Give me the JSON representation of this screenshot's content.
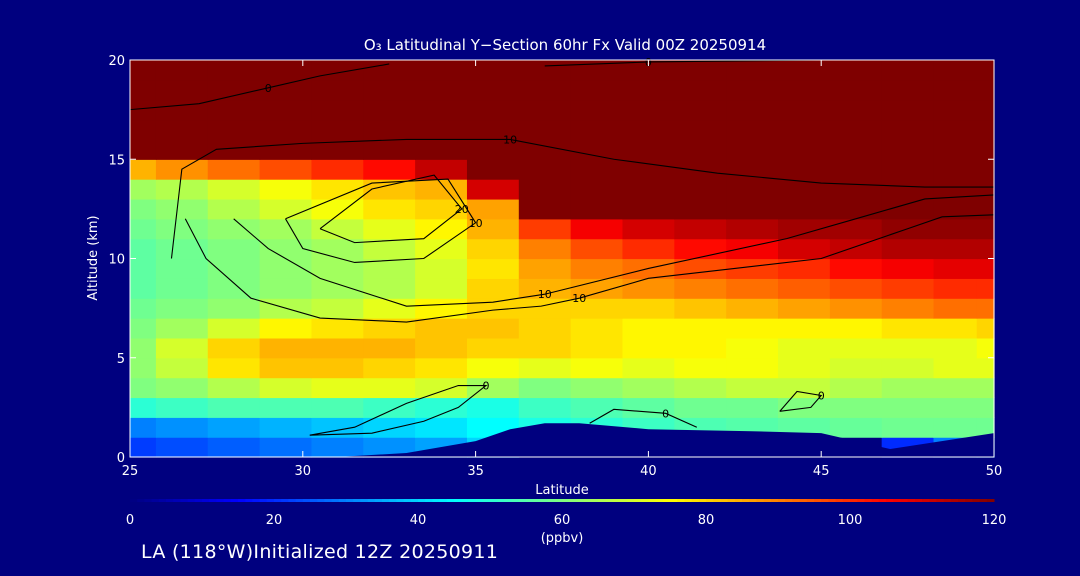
{
  "chart_data": {
    "type": "heatmap",
    "title": "O₃ Latitudinal Y−Section 60hr  Fx Valid 00Z 20250914",
    "xlabel": "Latitude",
    "ylabel": "Altitude (km)",
    "xlim": [
      25,
      50
    ],
    "ylim": [
      0,
      20
    ],
    "x_ticks": [
      "25",
      "30",
      "35",
      "40",
      "45",
      "50"
    ],
    "y_ticks": [
      "0",
      "5",
      "10",
      "15",
      "20"
    ],
    "colorbar": {
      "ticks": [
        "0",
        "20",
        "40",
        "60",
        "80",
        "100",
        "120"
      ],
      "range": [
        0,
        120
      ],
      "unit": "(ppbv)",
      "colors": [
        "#00007f",
        "#0000ff",
        "#0080ff",
        "#00ffff",
        "#80ff80",
        "#ffff00",
        "#ff8000",
        "#ff0000",
        "#7f0000"
      ]
    },
    "x": [
      25,
      26.5,
      28,
      29.5,
      31,
      32.5,
      34,
      35.5,
      37,
      38.5,
      40,
      41.5,
      43,
      44.5,
      46,
      47.5,
      49,
      50
    ],
    "y": [
      0.5,
      1.5,
      2.5,
      3.5,
      4.5,
      5.5,
      6.5,
      7.5,
      8.5,
      9.5,
      10.5,
      11.5,
      12.5,
      13.5,
      14.5,
      15.5,
      16.5,
      17.5,
      18.5,
      19.5
    ],
    "values": [
      [
        22,
        24,
        26,
        28,
        30,
        32,
        34,
        40,
        0,
        0,
        0,
        0,
        0,
        0,
        0,
        20,
        30,
        35
      ],
      [
        30,
        32,
        34,
        36,
        38,
        40,
        42,
        45,
        48,
        50,
        52,
        54,
        55,
        56,
        57,
        58,
        58,
        58
      ],
      [
        50,
        52,
        54,
        54,
        54,
        52,
        50,
        48,
        52,
        54,
        56,
        58,
        58,
        60,
        60,
        60,
        60,
        60
      ],
      [
        60,
        62,
        66,
        70,
        72,
        72,
        70,
        64,
        60,
        62,
        64,
        66,
        68,
        68,
        66,
        64,
        64,
        64
      ],
      [
        62,
        68,
        78,
        82,
        82,
        80,
        78,
        74,
        72,
        74,
        72,
        74,
        74,
        72,
        70,
        70,
        72,
        72
      ],
      [
        62,
        70,
        80,
        84,
        84,
        84,
        82,
        80,
        80,
        78,
        76,
        76,
        74,
        72,
        72,
        72,
        72,
        74
      ],
      [
        60,
        64,
        70,
        76,
        78,
        80,
        82,
        82,
        80,
        78,
        76,
        76,
        76,
        76,
        76,
        78,
        78,
        80
      ],
      [
        58,
        60,
        62,
        66,
        68,
        72,
        76,
        80,
        80,
        80,
        80,
        82,
        84,
        86,
        88,
        90,
        92,
        92
      ],
      [
        56,
        58,
        60,
        62,
        64,
        66,
        70,
        80,
        84,
        86,
        88,
        90,
        92,
        94,
        96,
        98,
        100,
        100
      ],
      [
        56,
        58,
        60,
        62,
        64,
        66,
        70,
        78,
        86,
        90,
        92,
        96,
        98,
        100,
        104,
        106,
        108,
        108
      ],
      [
        56,
        58,
        60,
        62,
        64,
        68,
        72,
        80,
        90,
        96,
        100,
        104,
        106,
        110,
        112,
        114,
        114,
        114
      ],
      [
        58,
        60,
        62,
        64,
        68,
        72,
        76,
        84,
        98,
        106,
        110,
        112,
        114,
        116,
        116,
        118,
        118,
        118
      ],
      [
        60,
        62,
        66,
        70,
        74,
        78,
        80,
        86,
        120,
        120,
        120,
        120,
        120,
        120,
        120,
        120,
        120,
        120
      ],
      [
        64,
        66,
        70,
        74,
        78,
        82,
        84,
        110,
        120,
        120,
        120,
        120,
        120,
        120,
        120,
        120,
        120,
        120
      ],
      [
        84,
        88,
        92,
        96,
        100,
        104,
        112,
        120,
        120,
        120,
        120,
        120,
        120,
        120,
        120,
        120,
        120,
        120
      ],
      [
        120,
        120,
        120,
        120,
        120,
        120,
        120,
        120,
        120,
        120,
        120,
        120,
        120,
        120,
        120,
        120,
        120,
        120
      ],
      [
        120,
        120,
        120,
        120,
        120,
        120,
        120,
        120,
        120,
        120,
        120,
        120,
        120,
        120,
        120,
        120,
        120,
        120
      ],
      [
        120,
        120,
        120,
        120,
        120,
        120,
        120,
        120,
        120,
        120,
        120,
        120,
        120,
        120,
        120,
        120,
        120,
        120
      ],
      [
        120,
        120,
        120,
        120,
        120,
        120,
        120,
        120,
        120,
        120,
        120,
        120,
        120,
        120,
        120,
        120,
        120,
        120
      ],
      [
        120,
        120,
        120,
        120,
        120,
        120,
        120,
        120,
        120,
        120,
        120,
        120,
        120,
        120,
        120,
        120,
        120,
        120
      ]
    ],
    "terrain": {
      "x": [
        25,
        31,
        33,
        35,
        36,
        37,
        38,
        40,
        43,
        45,
        47,
        50
      ],
      "height_km": [
        0,
        0,
        0.2,
        0.8,
        1.4,
        1.7,
        1.7,
        1.4,
        1.3,
        1.2,
        0.4,
        1.2
      ]
    },
    "contours": [
      {
        "label": "0",
        "points": [
          [
            30.2,
            1.1
          ],
          [
            31.5,
            1.5
          ],
          [
            33,
            2.7
          ],
          [
            34.5,
            3.6
          ],
          [
            35.3,
            3.6
          ],
          [
            34.5,
            2.5
          ],
          [
            33.5,
            1.8
          ],
          [
            32,
            1.2
          ],
          [
            30.2,
            1.1
          ]
        ]
      },
      {
        "label": "0",
        "points": [
          [
            38.3,
            1.7
          ],
          [
            39,
            2.4
          ],
          [
            40.5,
            2.2
          ],
          [
            41.4,
            1.5
          ]
        ]
      },
      {
        "label": "0",
        "points": [
          [
            43.8,
            2.3
          ],
          [
            44.3,
            3.3
          ],
          [
            45,
            3.1
          ],
          [
            44.7,
            2.5
          ],
          [
            43.8,
            2.3
          ]
        ]
      },
      {
        "label": "10",
        "points": [
          [
            26.2,
            10
          ],
          [
            26.5,
            14.5
          ],
          [
            27.5,
            15.5
          ],
          [
            30,
            15.8
          ],
          [
            33,
            16
          ],
          [
            36,
            16
          ],
          [
            39,
            15
          ],
          [
            42,
            14.3
          ],
          [
            45,
            13.8
          ],
          [
            48,
            13.6
          ],
          [
            50,
            13.6
          ]
        ]
      },
      {
        "label": "10",
        "points": [
          [
            26.6,
            12
          ],
          [
            27.2,
            10
          ],
          [
            28.5,
            8
          ],
          [
            30.5,
            7
          ],
          [
            33,
            6.8
          ],
          [
            35.5,
            7.4
          ],
          [
            36.9,
            7.6
          ],
          [
            38,
            8
          ],
          [
            40,
            9
          ],
          [
            42.5,
            9.5
          ],
          [
            45,
            10
          ],
          [
            47.5,
            11.5
          ],
          [
            48.5,
            12.1
          ],
          [
            50,
            12.2
          ]
        ]
      },
      {
        "label": "10",
        "points": [
          [
            28,
            12
          ],
          [
            29,
            10.5
          ],
          [
            30.5,
            9
          ],
          [
            33,
            7.6
          ],
          [
            35.5,
            7.8
          ],
          [
            37,
            8.2
          ],
          [
            40,
            9.5
          ],
          [
            44,
            11
          ],
          [
            46,
            12
          ],
          [
            48,
            13
          ],
          [
            50,
            13.2
          ]
        ]
      },
      {
        "label": "10",
        "points": [
          [
            29.5,
            12
          ],
          [
            30,
            10.5
          ],
          [
            31.5,
            9.8
          ],
          [
            33.5,
            10
          ],
          [
            35,
            11.8
          ],
          [
            34.2,
            14
          ],
          [
            32,
            13.8
          ],
          [
            29.5,
            12
          ]
        ]
      },
      {
        "label": "20",
        "points": [
          [
            30.5,
            11.5
          ],
          [
            31.5,
            10.8
          ],
          [
            33.5,
            11
          ],
          [
            34.6,
            12.5
          ],
          [
            33.8,
            14.2
          ],
          [
            32,
            13.5
          ],
          [
            30.5,
            11.5
          ]
        ]
      },
      {
        "label": "0",
        "points": [
          [
            37,
            19.7
          ],
          [
            40,
            19.9
          ],
          [
            45,
            20
          ]
        ]
      },
      {
        "label": "0",
        "points": [
          [
            25,
            17.5
          ],
          [
            27,
            17.8
          ],
          [
            29,
            18.6
          ],
          [
            30.5,
            19.2
          ],
          [
            32.5,
            19.8
          ]
        ]
      }
    ]
  },
  "footer": "LA (118°W)Initialized 12Z 20250911"
}
